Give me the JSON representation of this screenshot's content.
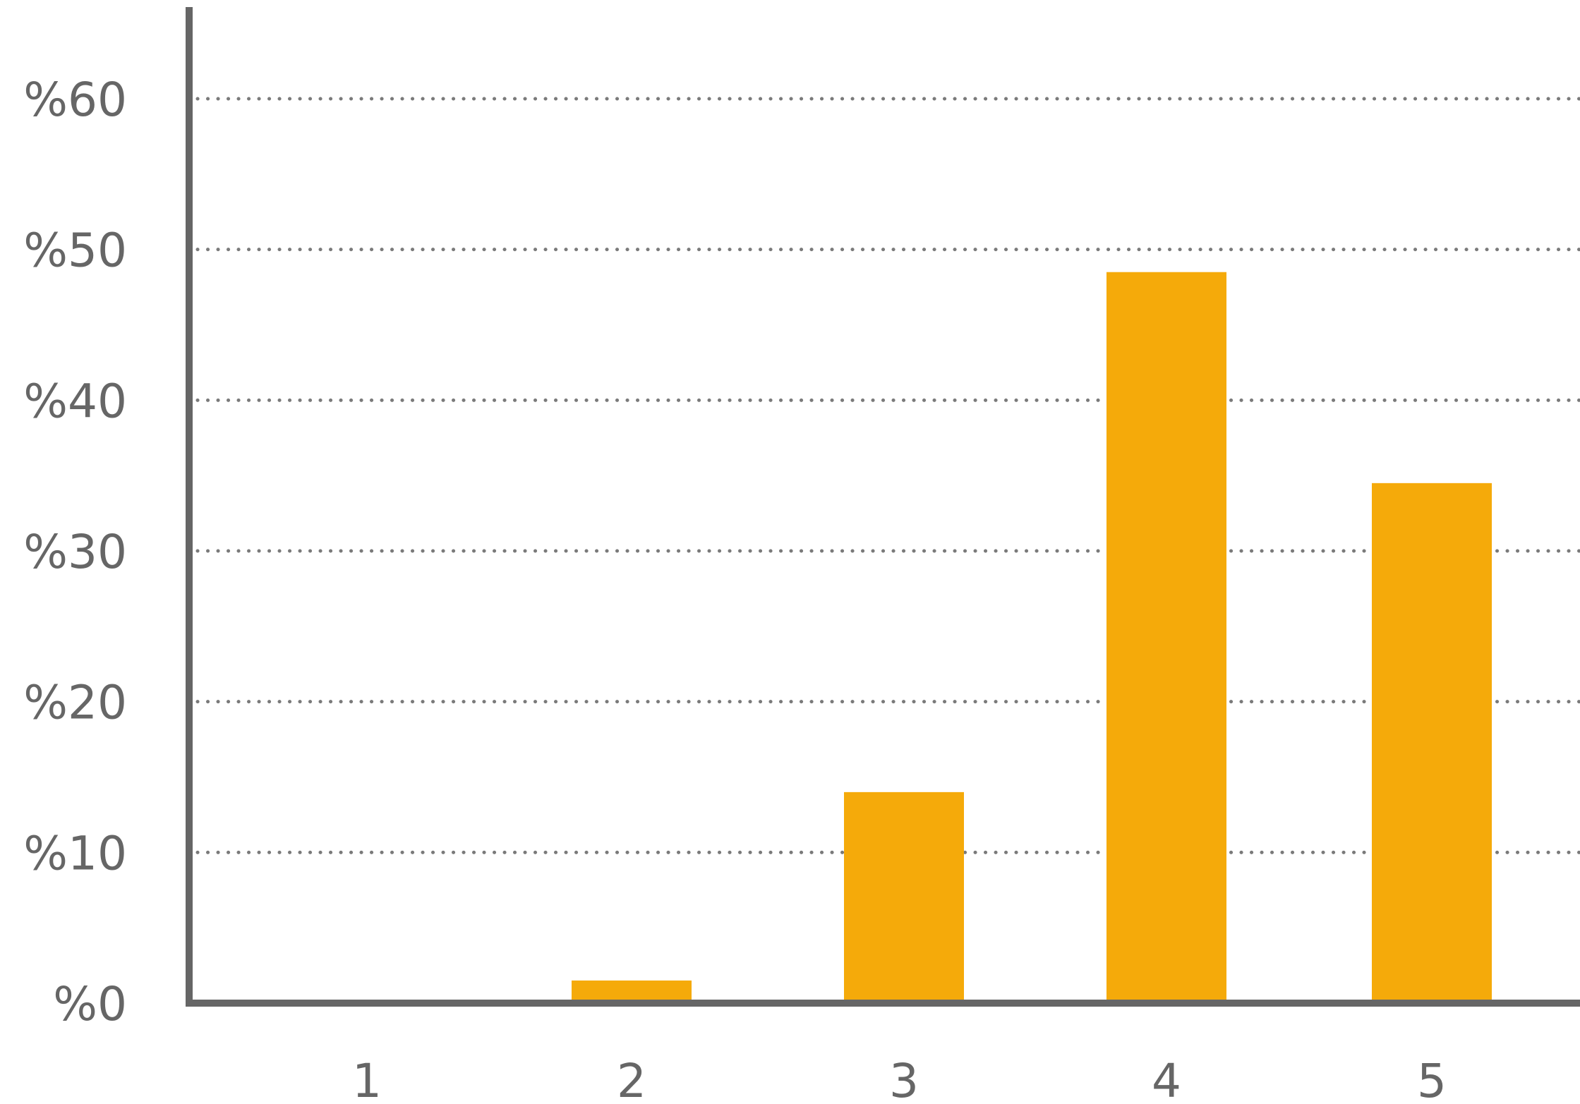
{
  "chart_data": {
    "type": "bar",
    "categories": [
      "1",
      "2",
      "3",
      "4",
      "5"
    ],
    "values": [
      0,
      1.5,
      14,
      48.5,
      34.5
    ],
    "title": "",
    "xlabel": "",
    "ylabel": "",
    "ylim": [
      0,
      60
    ],
    "y_ticks": [
      0,
      10,
      20,
      30,
      40,
      50,
      60
    ],
    "y_tick_labels": [
      "%0",
      "%10",
      "%20",
      "%30",
      "%40",
      "%50",
      "%60"
    ],
    "grid": true,
    "grid_style": "dotted",
    "bar_color": "#F5AA0A",
    "axis_color": "#666666",
    "grid_color": "#7a7a7a",
    "text_color": "#666666"
  }
}
